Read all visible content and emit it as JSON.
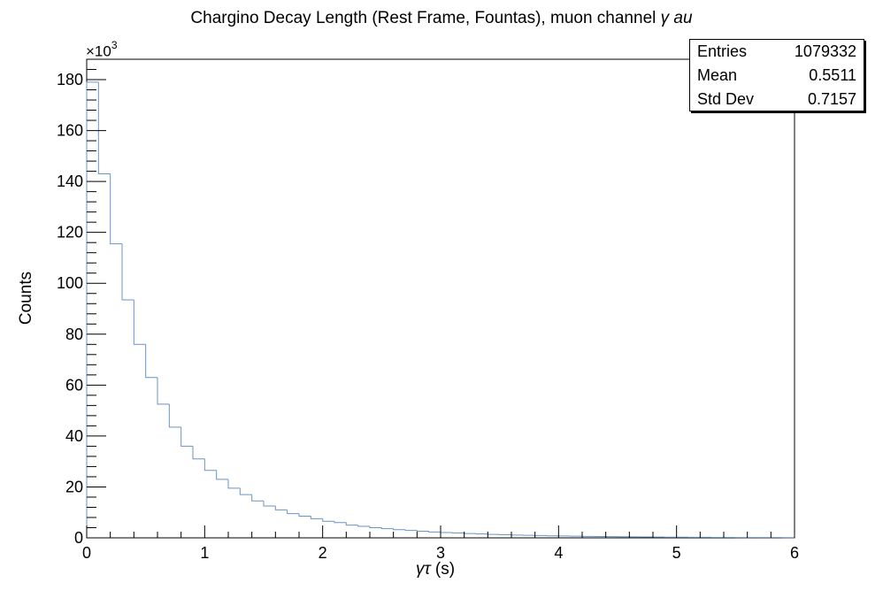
{
  "title": {
    "text": "Chargino Decay Length (Rest Frame, Fountas), muon channel ",
    "symbols": "γ   au"
  },
  "stats_box": {
    "entries_label": "Entries",
    "entries_value": "1079332",
    "mean_label": "Mean",
    "mean_value": "0.5511",
    "stddev_label": "Std Dev",
    "stddev_value": "0.7157"
  },
  "axis": {
    "multiplier_base": "×10",
    "multiplier_exp": "3",
    "xlabel_symbol": "γτ",
    "xlabel_unit": " (s)",
    "ylabel": "Counts"
  },
  "colors": {
    "histogram_line": "#6a93c8",
    "axis": "#000000"
  },
  "chart_data": {
    "type": "bar",
    "style": "step-histogram",
    "xlim": [
      0,
      6
    ],
    "ylim": [
      0,
      188
    ],
    "y_units": "thousands",
    "bin_width": 0.1,
    "x_ticks": [
      "0",
      "1",
      "2",
      "3",
      "4",
      "5",
      "6"
    ],
    "y_ticks": [
      "0",
      "20",
      "40",
      "60",
      "80",
      "100",
      "120",
      "140",
      "160",
      "180"
    ],
    "values": [
      179,
      143,
      115.5,
      93.5,
      76,
      63,
      52.5,
      43.5,
      36,
      31,
      26.5,
      23,
      19.5,
      17,
      14.5,
      12.5,
      11,
      9.5,
      8.5,
      7.5,
      6.5,
      6,
      5,
      4.5,
      4,
      3.6,
      3.2,
      2.9,
      2.6,
      2.3,
      2.1,
      1.9,
      1.7,
      1.5,
      1.35,
      1.2,
      1.1,
      1.0,
      0.9,
      0.8,
      0.72,
      0.65,
      0.58,
      0.52,
      0.47,
      0.42,
      0.38,
      0.34,
      0.31,
      0.28,
      0.25,
      0.22,
      0.2,
      0.18,
      0.16,
      0.15,
      0.13,
      0.12,
      0.11,
      0.1
    ]
  }
}
